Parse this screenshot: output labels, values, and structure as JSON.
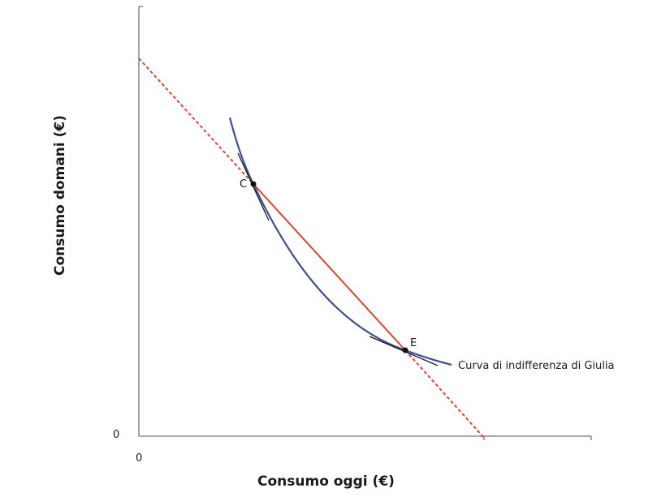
{
  "axes": {
    "x_title": "Consumo oggi (€)",
    "y_title": "Consumo domani (€)",
    "x_origin": "0",
    "y_origin": "0"
  },
  "points": {
    "c": "C",
    "e": "E"
  },
  "curve_label": "Curva di indifferenza di Giulia",
  "colors": {
    "budget_line": "#e0452c",
    "indifference_curve": "#3c4f9a",
    "axis": "#777777",
    "tangent": "#1a1a1a"
  }
}
